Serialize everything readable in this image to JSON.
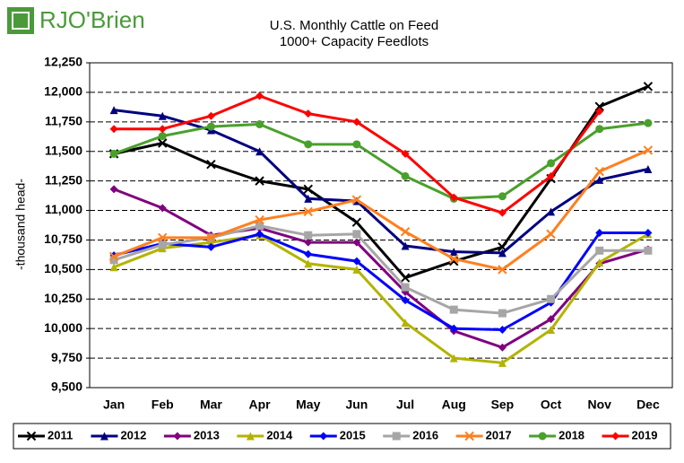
{
  "logo": "RJO'Brien",
  "chart_data": {
    "type": "line",
    "title": "U.S. Monthly Cattle on Feed",
    "subtitle": "1000+ Capacity Feedlots",
    "y_label": "-thousand head-",
    "categories": [
      "Jan",
      "Feb",
      "Mar",
      "Apr",
      "May",
      "Jun",
      "Jul",
      "Aug",
      "Sep",
      "Oct",
      "Nov",
      "Dec"
    ],
    "ylim": [
      9500,
      12250
    ],
    "yticks": [
      {
        "value": 9500,
        "label": "9,500"
      },
      {
        "value": 9750,
        "label": "9,750"
      },
      {
        "value": 10000,
        "label": "10,000"
      },
      {
        "value": 10250,
        "label": "10,250"
      },
      {
        "value": 10500,
        "label": "10,500"
      },
      {
        "value": 10750,
        "label": "10,750"
      },
      {
        "value": 11000,
        "label": "11,000"
      },
      {
        "value": 11250,
        "label": "11,250"
      },
      {
        "value": 11500,
        "label": "11,500"
      },
      {
        "value": 11750,
        "label": "11,750"
      },
      {
        "value": 12000,
        "label": "12,000"
      },
      {
        "value": 12250,
        "label": "12,250"
      }
    ],
    "grid": true,
    "series": [
      {
        "name": "2011",
        "color": "#000000",
        "marker": "x",
        "values": [
          11480,
          11570,
          11390,
          11250,
          11180,
          10900,
          10430,
          10570,
          10690,
          11270,
          11880,
          12050
        ]
      },
      {
        "name": "2012",
        "color": "#000080",
        "marker": "triangle",
        "values": [
          11850,
          11800,
          11680,
          11500,
          11100,
          11080,
          10700,
          10650,
          10640,
          10990,
          11260,
          11350
        ]
      },
      {
        "name": "2013",
        "color": "#800080",
        "marker": "diamond",
        "values": [
          11180,
          11020,
          10790,
          10850,
          10730,
          10730,
          10310,
          9980,
          9840,
          10080,
          10550,
          10670
        ]
      },
      {
        "name": "2014",
        "color": "#b3b300",
        "marker": "triangle",
        "values": [
          10520,
          10680,
          10730,
          10790,
          10550,
          10500,
          10050,
          9750,
          9710,
          9990,
          10560,
          10800
        ]
      },
      {
        "name": "2015",
        "color": "#0000ff",
        "marker": "diamond",
        "values": [
          10620,
          10720,
          10690,
          10800,
          10630,
          10570,
          10240,
          10000,
          9990,
          10220,
          10810,
          10810
        ]
      },
      {
        "name": "2016",
        "color": "#a6a6a6",
        "marker": "square",
        "values": [
          10580,
          10710,
          10770,
          10870,
          10790,
          10800,
          10350,
          10160,
          10130,
          10250,
          10660,
          10660
        ]
      },
      {
        "name": "2017",
        "color": "#ff7f1f",
        "marker": "x",
        "values": [
          10610,
          10770,
          10770,
          10920,
          10990,
          11090,
          10820,
          10590,
          10500,
          10800,
          11330,
          11510
        ]
      },
      {
        "name": "2018",
        "color": "#4aa02c",
        "marker": "circle",
        "values": [
          11480,
          11630,
          11710,
          11730,
          11560,
          11560,
          11290,
          11100,
          11120,
          11400,
          11690,
          11740
        ]
      },
      {
        "name": "2019",
        "color": "#ff0000",
        "marker": "diamond",
        "values": [
          11690,
          11690,
          11800,
          11970,
          11820,
          11750,
          11480,
          11110,
          10980,
          11290,
          11840,
          null
        ]
      }
    ]
  }
}
